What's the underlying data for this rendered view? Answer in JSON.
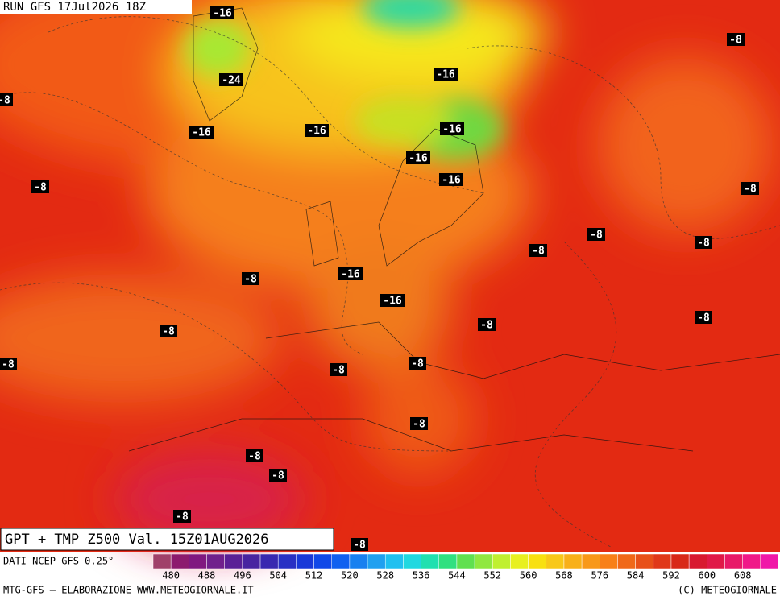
{
  "header": {
    "run": "RUN GFS 17Jul2026 18Z"
  },
  "map_labels": [
    "-16",
    "-8",
    "-16",
    "-24",
    "-8",
    "-16",
    "-16",
    "-16",
    "-16",
    "-8",
    "-16",
    "-8",
    "-8",
    "-8",
    "-8",
    "-16",
    "-8",
    "-16",
    "-8",
    "-8",
    "-8",
    "-8",
    "-8",
    "-8",
    "-8",
    "-8",
    "-8",
    "-8",
    "-8"
  ],
  "footer": {
    "title": "GPT + TMP Z500 Val. 15Z01AUG2026",
    "source": "DATI NCEP GFS 0.25°",
    "credit_left": "MTG-GFS — ELABORAZIONE WWW.METEOGIORNALE.IT",
    "credit_right": "(C) METEOGIORNALE"
  },
  "legend": {
    "ticks": [
      480,
      488,
      496,
      504,
      512,
      520,
      528,
      536,
      544,
      552,
      560,
      568,
      576,
      584,
      592,
      600,
      608
    ]
  }
}
